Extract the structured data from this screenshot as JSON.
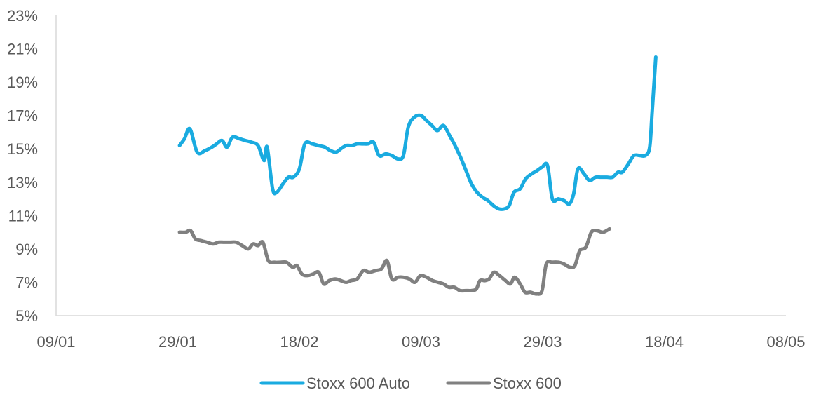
{
  "chart_data": {
    "type": "line",
    "xlabel": "",
    "ylabel": "",
    "xlim": [
      0,
      119
    ],
    "ylim": [
      5,
      23
    ],
    "x_ticks": [
      {
        "day": 0,
        "label": "09/01"
      },
      {
        "day": 20,
        "label": "29/01"
      },
      {
        "day": 40,
        "label": "18/02"
      },
      {
        "day": 60,
        "label": "09/03"
      },
      {
        "day": 80,
        "label": "29/03"
      },
      {
        "day": 100,
        "label": "18/04"
      },
      {
        "day": 120,
        "label": "08/05"
      }
    ],
    "y_ticks": [
      {
        "value": 5,
        "label": "5%"
      },
      {
        "value": 7,
        "label": "7%"
      },
      {
        "value": 9,
        "label": "9%"
      },
      {
        "value": 11,
        "label": "11%"
      },
      {
        "value": 13,
        "label": "13%"
      },
      {
        "value": 15,
        "label": "15%"
      },
      {
        "value": 17,
        "label": "17%"
      },
      {
        "value": 19,
        "label": "19%"
      },
      {
        "value": 21,
        "label": "21%"
      },
      {
        "value": 23,
        "label": "23%"
      }
    ],
    "grid": false,
    "legend": "bottom-center",
    "series": [
      {
        "name": "Stoxx 600 Auto",
        "color": "#1aabe0",
        "points": [
          [
            20.3,
            15.2
          ],
          [
            21.1,
            15.6
          ],
          [
            22.0,
            16.2
          ],
          [
            23.2,
            14.8
          ],
          [
            24.5,
            14.9
          ],
          [
            25.6,
            15.1
          ],
          [
            26.4,
            15.3
          ],
          [
            27.3,
            15.5
          ],
          [
            28.1,
            15.1
          ],
          [
            29.0,
            15.7
          ],
          [
            30.2,
            15.6
          ],
          [
            31.1,
            15.5
          ],
          [
            32.1,
            15.4
          ],
          [
            33.2,
            15.2
          ],
          [
            34.2,
            14.3
          ],
          [
            34.7,
            15.1
          ],
          [
            35.6,
            12.6
          ],
          [
            36.3,
            12.4
          ],
          [
            37.3,
            12.9
          ],
          [
            38.2,
            13.3
          ],
          [
            39.0,
            13.3
          ],
          [
            40.0,
            13.8
          ],
          [
            40.9,
            15.3
          ],
          [
            42.1,
            15.3
          ],
          [
            43.1,
            15.2
          ],
          [
            44.2,
            15.1
          ],
          [
            45.1,
            14.9
          ],
          [
            46.0,
            14.8
          ],
          [
            46.8,
            15.0
          ],
          [
            47.7,
            15.2
          ],
          [
            48.6,
            15.2
          ],
          [
            49.5,
            15.3
          ],
          [
            50.4,
            15.3
          ],
          [
            51.3,
            15.3
          ],
          [
            52.2,
            15.4
          ],
          [
            53.1,
            14.6
          ],
          [
            54.2,
            14.7
          ],
          [
            55.2,
            14.6
          ],
          [
            56.2,
            14.4
          ],
          [
            57.1,
            14.6
          ],
          [
            57.9,
            16.3
          ],
          [
            58.9,
            16.9
          ],
          [
            60.0,
            17.0
          ],
          [
            60.9,
            16.7
          ],
          [
            61.8,
            16.4
          ],
          [
            62.7,
            16.1
          ],
          [
            63.7,
            16.4
          ],
          [
            64.7,
            15.8
          ],
          [
            65.6,
            15.2
          ],
          [
            66.5,
            14.5
          ],
          [
            67.4,
            13.7
          ],
          [
            68.3,
            12.9
          ],
          [
            69.2,
            12.4
          ],
          [
            70.1,
            12.1
          ],
          [
            71.0,
            11.9
          ],
          [
            71.9,
            11.6
          ],
          [
            72.8,
            11.4
          ],
          [
            73.7,
            11.4
          ],
          [
            74.5,
            11.6
          ],
          [
            75.3,
            12.4
          ],
          [
            76.3,
            12.6
          ],
          [
            77.2,
            13.2
          ],
          [
            78.2,
            13.5
          ],
          [
            79.1,
            13.7
          ],
          [
            79.9,
            13.9
          ],
          [
            80.8,
            14.0
          ],
          [
            81.6,
            12.0
          ],
          [
            82.6,
            12.0
          ],
          [
            83.5,
            11.9
          ],
          [
            84.4,
            11.7
          ],
          [
            85.1,
            12.3
          ],
          [
            85.8,
            13.8
          ],
          [
            86.8,
            13.5
          ],
          [
            87.7,
            13.1
          ],
          [
            88.7,
            13.3
          ],
          [
            89.6,
            13.3
          ],
          [
            90.6,
            13.3
          ],
          [
            91.5,
            13.3
          ],
          [
            92.4,
            13.6
          ],
          [
            93.1,
            13.6
          ],
          [
            94.1,
            14.1
          ],
          [
            95.0,
            14.6
          ],
          [
            96.0,
            14.6
          ],
          [
            96.9,
            14.6
          ],
          [
            97.6,
            15.1
          ],
          [
            98.0,
            17.2
          ],
          [
            98.6,
            20.5
          ]
        ]
      },
      {
        "name": "Stoxx 600",
        "color": "#808080",
        "points": [
          [
            20.3,
            10.0
          ],
          [
            21.3,
            10.0
          ],
          [
            22.1,
            10.1
          ],
          [
            22.9,
            9.6
          ],
          [
            23.8,
            9.5
          ],
          [
            24.8,
            9.4
          ],
          [
            25.8,
            9.3
          ],
          [
            26.7,
            9.4
          ],
          [
            27.6,
            9.4
          ],
          [
            28.6,
            9.4
          ],
          [
            29.6,
            9.4
          ],
          [
            30.6,
            9.2
          ],
          [
            31.6,
            9.0
          ],
          [
            32.4,
            9.3
          ],
          [
            33.2,
            9.2
          ],
          [
            34.0,
            9.4
          ],
          [
            34.9,
            8.3
          ],
          [
            35.9,
            8.2
          ],
          [
            36.9,
            8.2
          ],
          [
            37.9,
            8.2
          ],
          [
            38.9,
            7.9
          ],
          [
            39.6,
            8.0
          ],
          [
            40.4,
            7.5
          ],
          [
            41.3,
            7.4
          ],
          [
            42.3,
            7.5
          ],
          [
            43.2,
            7.6
          ],
          [
            44.0,
            6.9
          ],
          [
            44.9,
            7.1
          ],
          [
            45.9,
            7.2
          ],
          [
            46.8,
            7.1
          ],
          [
            47.7,
            7.0
          ],
          [
            48.5,
            7.1
          ],
          [
            49.5,
            7.2
          ],
          [
            50.5,
            7.7
          ],
          [
            51.5,
            7.6
          ],
          [
            52.5,
            7.7
          ],
          [
            53.5,
            7.8
          ],
          [
            54.4,
            8.3
          ],
          [
            55.2,
            7.2
          ],
          [
            56.2,
            7.3
          ],
          [
            57.1,
            7.3
          ],
          [
            58.1,
            7.2
          ],
          [
            59.0,
            7.0
          ],
          [
            59.9,
            7.4
          ],
          [
            60.9,
            7.3
          ],
          [
            61.9,
            7.1
          ],
          [
            62.8,
            7.0
          ],
          [
            63.7,
            6.9
          ],
          [
            64.6,
            6.7
          ],
          [
            65.5,
            6.7
          ],
          [
            66.4,
            6.5
          ],
          [
            67.4,
            6.5
          ],
          [
            68.3,
            6.5
          ],
          [
            69.1,
            6.6
          ],
          [
            69.7,
            7.1
          ],
          [
            70.5,
            7.1
          ],
          [
            71.2,
            7.2
          ],
          [
            72.0,
            7.6
          ],
          [
            72.9,
            7.4
          ],
          [
            73.9,
            7.1
          ],
          [
            74.7,
            6.9
          ],
          [
            75.4,
            7.3
          ],
          [
            76.3,
            6.9
          ],
          [
            77.1,
            6.4
          ],
          [
            78.0,
            6.4
          ],
          [
            79.0,
            6.3
          ],
          [
            79.9,
            6.5
          ],
          [
            80.6,
            8.1
          ],
          [
            81.6,
            8.2
          ],
          [
            82.6,
            8.2
          ],
          [
            83.5,
            8.1
          ],
          [
            84.5,
            7.9
          ],
          [
            85.3,
            8.0
          ],
          [
            86.1,
            8.9
          ],
          [
            87.1,
            9.1
          ],
          [
            88.0,
            10.0
          ],
          [
            88.9,
            10.1
          ],
          [
            89.9,
            10.0
          ],
          [
            91.0,
            10.2
          ]
        ]
      }
    ]
  }
}
